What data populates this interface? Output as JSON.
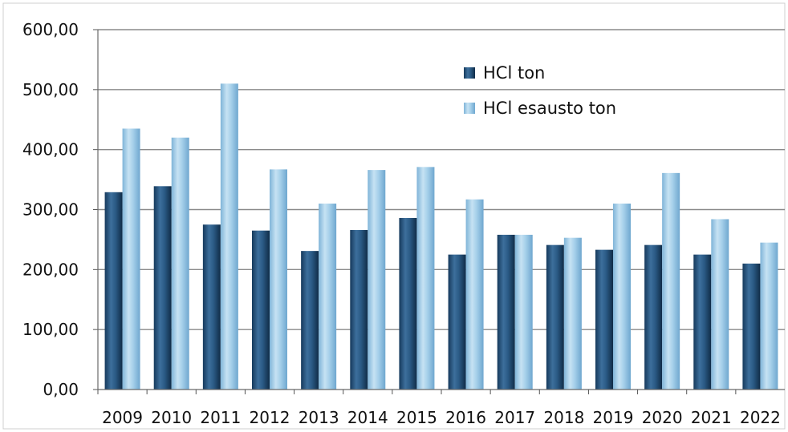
{
  "chart_data": {
    "type": "bar",
    "categories": [
      "2009",
      "2010",
      "2011",
      "2012",
      "2013",
      "2014",
      "2015",
      "2016",
      "2017",
      "2018",
      "2019",
      "2020",
      "2021",
      "2022"
    ],
    "series": [
      {
        "name": "HCl ton",
        "color": "#1f4e79",
        "values": [
          329,
          339,
          275,
          265,
          231,
          266,
          286,
          225,
          258,
          241,
          233,
          241,
          225,
          210
        ]
      },
      {
        "name": "HCl esausto ton",
        "color": "#9dc8e6",
        "values": [
          435,
          420,
          510,
          367,
          310,
          366,
          371,
          317,
          258,
          253,
          310,
          361,
          284,
          245
        ]
      }
    ],
    "y_ticks": [
      "0,00",
      "100,00",
      "200,00",
      "300,00",
      "400,00",
      "500,00",
      "600,00"
    ],
    "ylim": [
      0,
      600
    ],
    "grid": true,
    "legend_position": "top-right-inside"
  }
}
